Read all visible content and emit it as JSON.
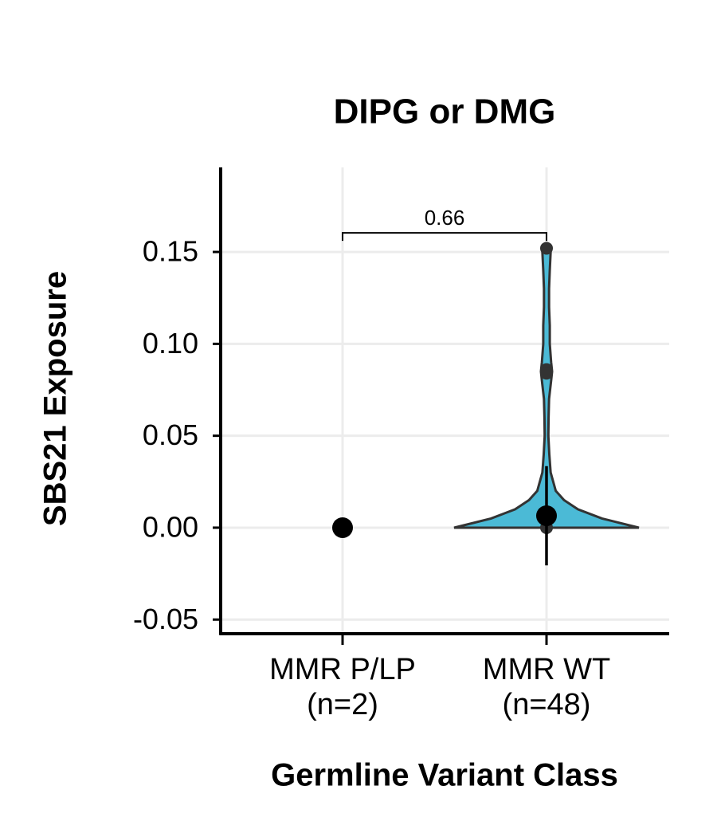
{
  "chart_data": {
    "type": "violin",
    "title": "DIPG or DMG",
    "xlabel": "Germline Variant Class",
    "ylabel": "SBS21 Exposure",
    "categories": [
      "MMR P/LP\n(n=2)",
      "MMR WT\n(n=48)"
    ],
    "ylim": [
      -0.0577,
      0.196
    ],
    "yticks": [
      -0.05,
      {
        "value": 0,
        "label": "0.00"
      },
      0.05,
      {
        "value": 0.1,
        "label": "0.10"
      },
      0.15
    ],
    "grid": true,
    "color": "#4bbad6",
    "groups": [
      {
        "points": [
          0,
          0
        ],
        "mean": 0
      },
      {
        "points": [
          0.152,
          0.086,
          0.084,
          0
        ],
        "mean": 0.0065,
        "lower": -0.0205,
        "upper": 0.0335,
        "violin": {
          "y": [
            0,
            0.005,
            0.01,
            0.015,
            0.02,
            0.03,
            0.04,
            0.05,
            0.06,
            0.07,
            0.08,
            0.085,
            0.09,
            0.1,
            0.11,
            0.12,
            0.13,
            0.14,
            0.15,
            0.152
          ],
          "density": [
            1,
            0.6,
            0.34,
            0.19,
            0.1,
            0.045,
            0.03,
            0.02,
            0.022,
            0.028,
            0.05,
            0.06,
            0.05,
            0.035,
            0.035,
            0.028,
            0.028,
            0.035,
            0.045,
            0.035
          ]
        }
      }
    ],
    "annotations": [
      {
        "text": "0.66",
        "y": 0.1604,
        "from": 0,
        "to": 1
      }
    ]
  }
}
